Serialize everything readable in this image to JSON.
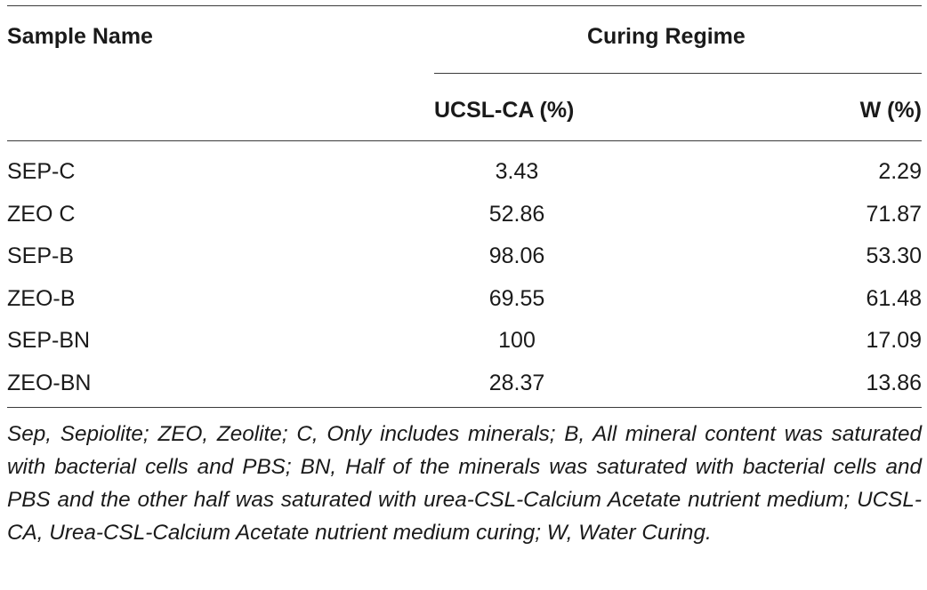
{
  "table": {
    "headers": {
      "sample_name": "Sample Name",
      "curing_regime": "Curing Regime",
      "ucsl_ca": "UCSL-CA (%)",
      "w": "W (%)"
    },
    "rows": [
      {
        "name": "SEP-C",
        "ucsl_ca": "3.43",
        "w": "2.29"
      },
      {
        "name": "ZEO C",
        "ucsl_ca": "52.86",
        "w": "71.87"
      },
      {
        "name": "SEP-B",
        "ucsl_ca": "98.06",
        "w": "53.30"
      },
      {
        "name": "ZEO-B",
        "ucsl_ca": "69.55",
        "w": "61.48"
      },
      {
        "name": "SEP-BN",
        "ucsl_ca": "100",
        "w": "17.09"
      },
      {
        "name": "ZEO-BN",
        "ucsl_ca": "28.37",
        "w": "13.86"
      }
    ]
  },
  "footnote": "Sep, Sepiolite; ZEO, Zeolite; C, Only includes minerals; B, All mineral content was saturated with bacterial cells and PBS; BN, Half of the minerals was saturated with bacterial cells and PBS and the other half was saturated with urea-CSL-Calcium Acetate nutrient medium; UCSL-CA, Urea-CSL-Calcium Acetate nutrient medium curing; W, Water Curing."
}
